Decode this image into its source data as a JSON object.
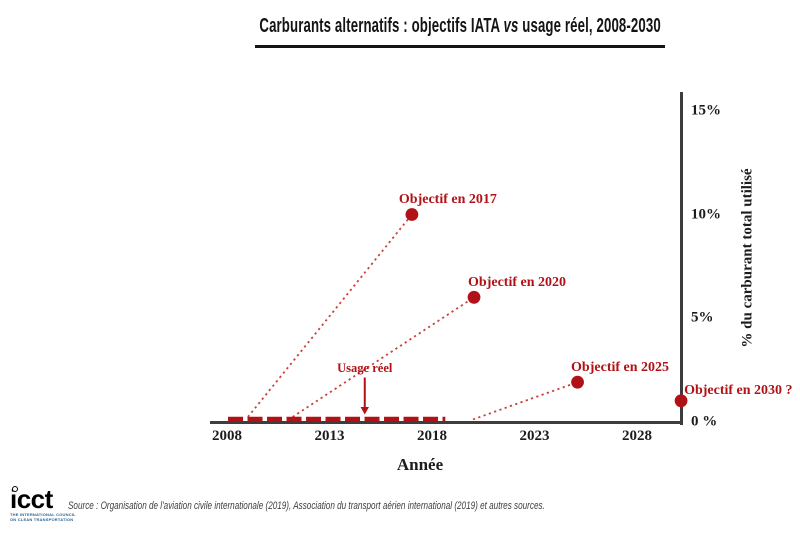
{
  "header": {
    "title_full": "Carburants alternatifs : objectifs IATA vs usage réel, 2008-2030",
    "title_parts": {
      "prefix": "Carburants alternatifs : objectifs IATA ",
      "emphasis": "vs",
      "suffix": " usage réel, 2008-2030"
    }
  },
  "chart_data": {
    "type": "scatter",
    "title": "Carburants alternatifs : objectifs IATA vs usage réel, 2008-2030",
    "xlabel": "Année",
    "ylabel": "% du carburant total utilisé",
    "xlim": [
      2007.2,
      2030.6
    ],
    "ylim": [
      0,
      16
    ],
    "grid": false,
    "y_axis_side": "right",
    "x_ticks": [
      2008,
      2013,
      2018,
      2023,
      2028
    ],
    "y_ticks": [
      0,
      5,
      10,
      15
    ],
    "y_tick_labels": [
      "0 %",
      "5%",
      "10%",
      "15%"
    ],
    "objectives": [
      {
        "name": "Objectif en 2017",
        "x": 2017.02,
        "y": 10,
        "line_from_x": 2009.02,
        "line_from_y": 0.22
      },
      {
        "name": "Objectif en 2020",
        "x": 2020.05,
        "y": 6,
        "line_from_x": 2011.2,
        "line_from_y": 0.22
      },
      {
        "name": "Objectif en 2025",
        "x": 2025.1,
        "y": 1.9,
        "line_from_x": 2020.0,
        "line_from_y": 0.1
      },
      {
        "name": "Objectif en 2030 ?",
        "x": 2030.15,
        "y": 1,
        "line_from_x": null,
        "line_from_y": null
      }
    ],
    "usage_reel": {
      "label": "Usage réel",
      "x_start": 2008.05,
      "x_end": 2018.65,
      "y": 0.12,
      "arrow_x": 2014.72
    },
    "colors": {
      "objective_red": "#b11217",
      "dotted_line_red": "#c8423a",
      "axis_gray": "#3d3d3d"
    }
  },
  "footer": {
    "logo_text": "icct",
    "logo_tagline_line1": "THE INTERNATIONAL COUNCIL",
    "logo_tagline_line2": "ON CLEAN TRANSPORTATION",
    "source_text": "Source : Organisation de l'aviation civile internationale (2019), Association du transport aérien international (2019) et autres sources."
  }
}
